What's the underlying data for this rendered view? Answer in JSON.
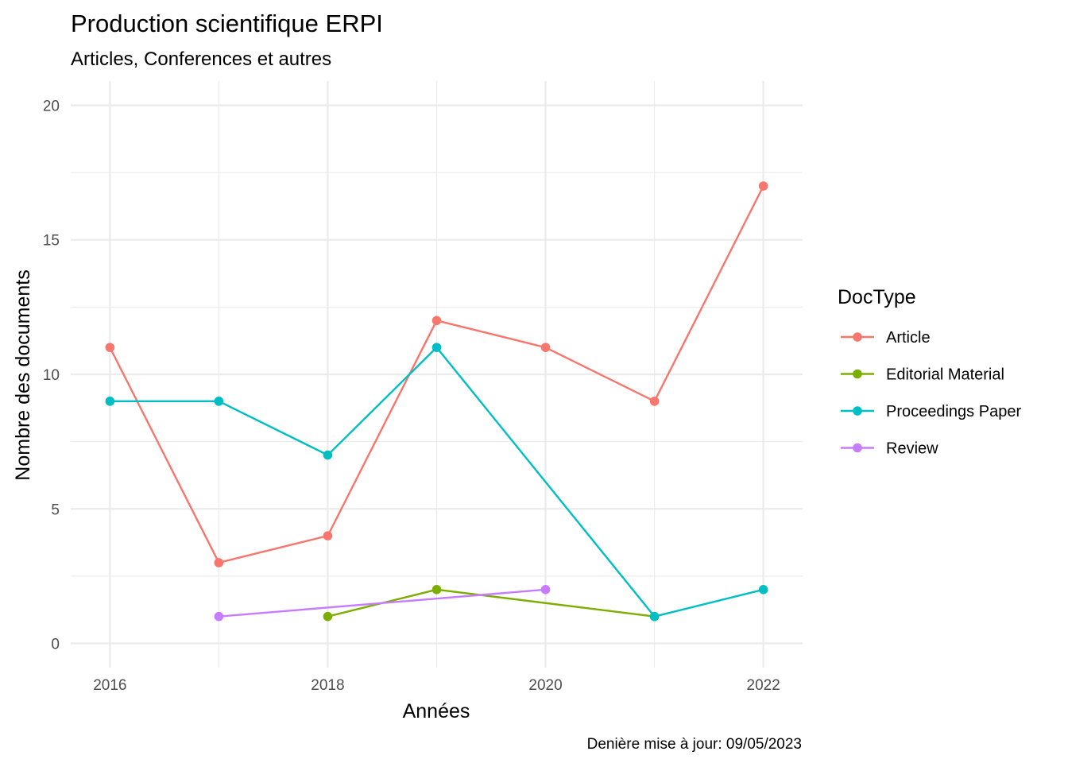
{
  "chart_data": {
    "type": "line",
    "title": "Production scientifique ERPI",
    "subtitle": "Articles, Conferences  et autres",
    "xlabel": "Années",
    "ylabel": "Nombre des documents",
    "caption": "Denière mise à jour: 09/05/2023",
    "xlim": [
      2015.64,
      2022.36
    ],
    "ylim": [
      -0.9,
      20.9
    ],
    "x_ticks": [
      2016,
      2018,
      2020,
      2022
    ],
    "y_ticks": [
      0,
      5,
      10,
      15,
      20
    ],
    "grid": true,
    "legend": {
      "title": "DocType",
      "position": "right"
    },
    "series": [
      {
        "name": "Article",
        "color": "#F8766D",
        "points": [
          [
            2016,
            11
          ],
          [
            2017,
            3
          ],
          [
            2018,
            4
          ],
          [
            2019,
            12
          ],
          [
            2020,
            11
          ],
          [
            2021,
            9
          ],
          [
            2022,
            17
          ]
        ]
      },
      {
        "name": "Editorial Material",
        "color": "#7CAE00",
        "points": [
          [
            2018,
            1
          ],
          [
            2019,
            2
          ],
          [
            2021,
            1
          ]
        ]
      },
      {
        "name": "Proceedings Paper",
        "color": "#00BFC4",
        "points": [
          [
            2016,
            9
          ],
          [
            2017,
            9
          ],
          [
            2018,
            7
          ],
          [
            2019,
            11
          ],
          [
            2021,
            1
          ],
          [
            2022,
            2
          ]
        ]
      },
      {
        "name": "Review",
        "color": "#C77CFF",
        "points": [
          [
            2017,
            1
          ],
          [
            2020,
            2
          ]
        ]
      }
    ]
  }
}
